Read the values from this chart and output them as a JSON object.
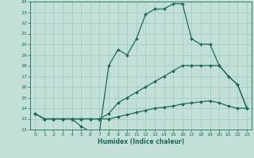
{
  "xlabel": "Humidex (Indice chaleur)",
  "bg_color": "#c2e0d8",
  "grid_color": "#9cc8c0",
  "line_color": "#1a6b5a",
  "xmin": -0.5,
  "xmax": 23.5,
  "ymin": 12,
  "ymax": 24,
  "yticks": [
    12,
    13,
    14,
    15,
    16,
    17,
    18,
    19,
    20,
    21,
    22,
    23,
    24
  ],
  "xticks": [
    0,
    1,
    2,
    3,
    4,
    5,
    6,
    7,
    8,
    9,
    10,
    11,
    12,
    13,
    14,
    15,
    16,
    17,
    18,
    19,
    20,
    21,
    22,
    23
  ],
  "line1_x": [
    0,
    1,
    2,
    3,
    4,
    5,
    6,
    7,
    8,
    9,
    10,
    11,
    12,
    13,
    14,
    15,
    16,
    17,
    18,
    19,
    20,
    21,
    22,
    23
  ],
  "line1_y": [
    13.5,
    13.0,
    13.0,
    13.0,
    13.0,
    12.3,
    11.8,
    11.8,
    18.0,
    19.5,
    19.0,
    20.5,
    22.8,
    23.3,
    23.3,
    23.8,
    23.8,
    20.5,
    20.0,
    20.0,
    18.0,
    17.0,
    16.2,
    14.0
  ],
  "line2_x": [
    0,
    1,
    2,
    3,
    4,
    5,
    6,
    7,
    8,
    9,
    10,
    11,
    12,
    13,
    14,
    15,
    16,
    17,
    18,
    19,
    20,
    21,
    22,
    23
  ],
  "line2_y": [
    13.5,
    13.0,
    13.0,
    13.0,
    13.0,
    13.0,
    13.0,
    13.0,
    13.5,
    14.5,
    15.0,
    15.5,
    16.0,
    16.5,
    17.0,
    17.5,
    18.0,
    18.0,
    18.0,
    18.0,
    18.0,
    17.0,
    16.2,
    14.0
  ],
  "line3_x": [
    0,
    1,
    2,
    3,
    4,
    5,
    6,
    7,
    8,
    9,
    10,
    11,
    12,
    13,
    14,
    15,
    16,
    17,
    18,
    19,
    20,
    21,
    22,
    23
  ],
  "line3_y": [
    13.5,
    13.0,
    13.0,
    13.0,
    13.0,
    13.0,
    13.0,
    13.0,
    13.0,
    13.2,
    13.4,
    13.6,
    13.8,
    14.0,
    14.1,
    14.2,
    14.4,
    14.5,
    14.6,
    14.7,
    14.5,
    14.2,
    14.0,
    14.0
  ]
}
